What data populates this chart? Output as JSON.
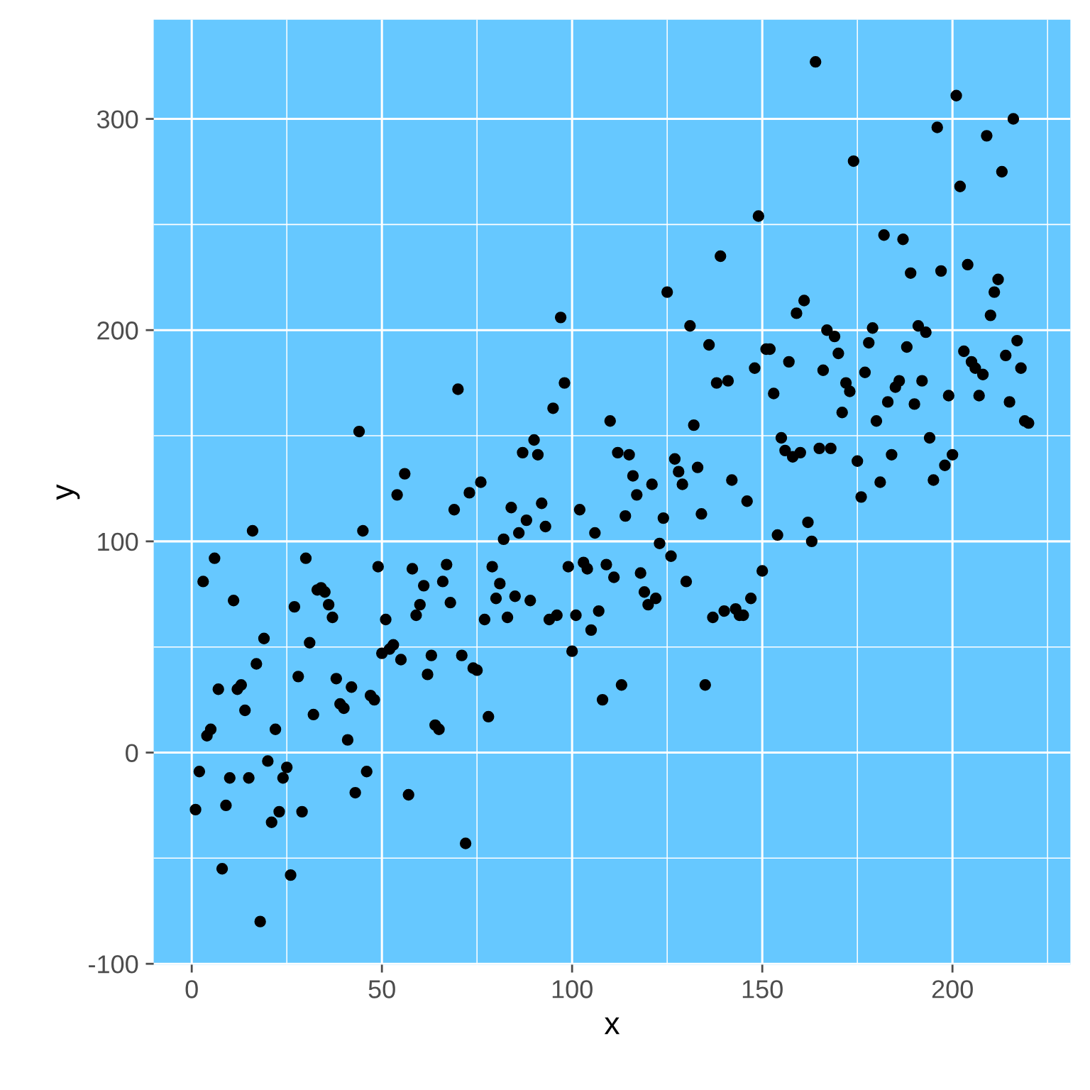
{
  "chart_data": {
    "type": "scatter",
    "xlabel": "x",
    "ylabel": "y",
    "xlim": [
      -10,
      231
    ],
    "ylim": [
      -100.4,
      347
    ],
    "xticks": [
      0,
      50,
      100,
      150,
      200
    ],
    "yticks": [
      -100,
      0,
      100,
      200,
      300
    ],
    "grid": true,
    "marker": "circle",
    "series": [
      {
        "color": "#000000",
        "x": [
          1,
          2,
          3,
          4,
          5,
          6,
          7,
          8,
          9,
          10,
          11,
          12,
          13,
          14,
          15,
          16,
          17,
          18,
          19,
          20,
          21,
          22,
          23,
          24,
          25,
          26,
          27,
          28,
          29,
          30,
          31,
          32,
          33,
          34,
          35,
          36,
          37,
          38,
          39,
          40,
          41,
          42,
          43,
          44,
          45,
          46,
          47,
          48,
          49,
          50,
          51,
          52,
          53,
          54,
          55,
          56,
          57,
          58,
          59,
          60,
          61,
          62,
          63,
          64,
          65,
          66,
          67,
          68,
          69,
          70,
          71,
          72,
          73,
          74,
          75,
          76,
          77,
          78,
          79,
          80,
          81,
          82,
          83,
          84,
          85,
          86,
          87,
          88,
          89,
          90,
          91,
          92,
          93,
          94,
          95,
          96,
          97,
          98,
          99,
          100,
          101,
          102,
          103,
          104,
          105,
          106,
          107,
          108,
          109,
          110,
          111,
          112,
          113,
          114,
          115,
          116,
          117,
          118,
          119,
          120,
          121,
          122,
          123,
          124,
          125,
          126,
          127,
          128,
          129,
          130,
          131,
          132,
          133,
          134,
          135,
          136,
          137,
          138,
          139,
          140,
          141,
          142,
          143,
          144,
          145,
          146,
          147,
          148,
          149,
          150,
          151,
          152,
          153,
          154,
          155,
          156,
          157,
          158,
          159,
          160,
          161,
          162,
          163,
          164,
          165,
          166,
          167,
          168,
          169,
          170,
          171,
          172,
          173,
          174,
          175,
          176,
          177,
          178,
          179,
          180,
          181,
          182,
          183,
          184,
          185,
          186,
          187,
          188,
          189,
          190,
          191,
          192,
          193,
          194,
          195,
          196,
          197,
          198,
          199,
          200,
          201,
          202,
          203,
          204,
          205,
          206,
          207,
          208,
          209,
          210,
          211,
          212,
          213,
          214,
          215,
          216,
          217,
          218,
          219,
          220
        ],
        "values": [
          -27,
          -9,
          81,
          8,
          11,
          92,
          30,
          -55,
          -25,
          -12,
          72,
          30,
          32,
          20,
          -12,
          105,
          42,
          -80,
          54,
          -4,
          -33,
          11,
          -28,
          -12,
          -7,
          -58,
          69,
          36,
          -28,
          92,
          52,
          18,
          77,
          78,
          76,
          70,
          64,
          35,
          23,
          21,
          6,
          31,
          -19,
          152,
          105,
          -9,
          27,
          25,
          88,
          47,
          63,
          49,
          51,
          122,
          44,
          132,
          -20,
          87,
          65,
          70,
          79,
          37,
          46,
          13,
          11,
          81,
          89,
          71,
          115,
          172,
          46,
          -43,
          123,
          40,
          39,
          128,
          63,
          17,
          88,
          73,
          80,
          101,
          64,
          116,
          74,
          104,
          142,
          110,
          72,
          148,
          141,
          118,
          107,
          63,
          163,
          65,
          206,
          175,
          88,
          48,
          65,
          115,
          90,
          87,
          58,
          104,
          67,
          25,
          89,
          157,
          83,
          142,
          32,
          112,
          141,
          131,
          122,
          85,
          76,
          70,
          127,
          73,
          99,
          111,
          218,
          93,
          139,
          133,
          127,
          81,
          202,
          155,
          135,
          113,
          32,
          193,
          64,
          175,
          235,
          67,
          176,
          129,
          68,
          65,
          65,
          119,
          73,
          182,
          254,
          86,
          191,
          191,
          170,
          103,
          149,
          143,
          185,
          140,
          208,
          142,
          214,
          109,
          100,
          327,
          144,
          181,
          200,
          144,
          197,
          189,
          161,
          175,
          171,
          280,
          138,
          121,
          180,
          194,
          201,
          157,
          128,
          245,
          166,
          141,
          173,
          176,
          243,
          192,
          227,
          165,
          202,
          176,
          199,
          149,
          129,
          296,
          228,
          136,
          169,
          141,
          311,
          268,
          190,
          231,
          185,
          182,
          169,
          179,
          292,
          207,
          218,
          224,
          275,
          188,
          166,
          300,
          195,
          182,
          157,
          156
        ]
      }
    ]
  }
}
